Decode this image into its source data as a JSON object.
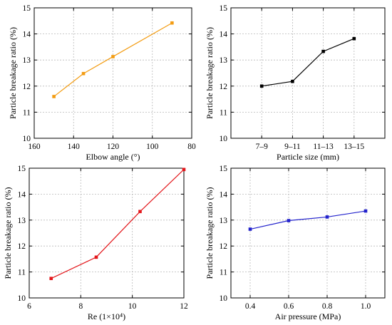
{
  "chart_data": [
    {
      "type": "line",
      "xlabel": "Elbow angle (°)",
      "ylabel": "Particle breakage ratio (%)",
      "xlim": [
        160,
        80
      ],
      "ylim": [
        10,
        15
      ],
      "xticks": [
        "160",
        "140",
        "120",
        "100",
        "80"
      ],
      "yticks": [
        "10",
        "11",
        "12",
        "13",
        "14",
        "15"
      ],
      "grid": true,
      "x": [
        150,
        135,
        120,
        90
      ],
      "series": [
        {
          "values": [
            11.6,
            12.48,
            13.13,
            14.42
          ],
          "color": "#f39c12"
        }
      ]
    },
    {
      "type": "line",
      "xlabel": "Particle size (mm)",
      "ylabel": "Particle breakage ratio (%)",
      "categories": [
        "7–9",
        "9–11",
        "11–13",
        "13–15"
      ],
      "ylim": [
        10,
        15
      ],
      "yticks": [
        "10",
        "11",
        "12",
        "13",
        "14",
        "15"
      ],
      "grid": true,
      "series": [
        {
          "values": [
            12.0,
            12.18,
            13.33,
            13.82
          ],
          "color": "#000000"
        }
      ]
    },
    {
      "type": "line",
      "xlabel": "Re (1×10⁴)",
      "ylabel": "Particle breakage ratio (%)",
      "xlim": [
        6,
        12
      ],
      "ylim": [
        10,
        15
      ],
      "xticks": [
        "6",
        "8",
        "10",
        "12"
      ],
      "yticks": [
        "10",
        "11",
        "12",
        "13",
        "14",
        "15"
      ],
      "grid": true,
      "x": [
        6.85,
        8.6,
        10.3,
        12.0
      ],
      "series": [
        {
          "values": [
            10.75,
            11.57,
            13.33,
            14.95
          ],
          "color": "#e3171b"
        }
      ]
    },
    {
      "type": "line",
      "xlabel": "Air pressure (MPa)",
      "ylabel": "Particle breakage ratio (%)",
      "xlim": [
        0.3,
        1.1
      ],
      "ylim": [
        10,
        15
      ],
      "xticks": [
        "0.4",
        "0.6",
        "0.8",
        "1.0"
      ],
      "yticks": [
        "10",
        "11",
        "12",
        "13",
        "14",
        "15"
      ],
      "grid": true,
      "x": [
        0.4,
        0.6,
        0.8,
        1.0
      ],
      "series": [
        {
          "values": [
            12.65,
            12.98,
            13.12,
            13.35
          ],
          "color": "#2222cc"
        }
      ]
    }
  ]
}
